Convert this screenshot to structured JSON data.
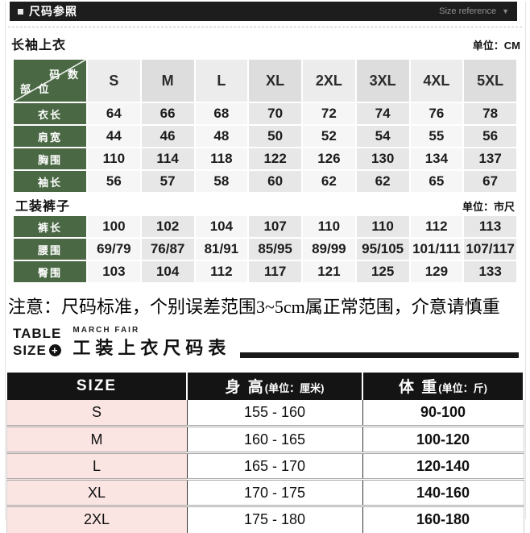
{
  "header": {
    "title": "尺码参照",
    "right_label": "Size reference",
    "arrow": "▼"
  },
  "section_top": {
    "title": "长袖上衣",
    "unit": "单位：CM"
  },
  "size_table": {
    "corner_top": "码 数",
    "corner_bottom": "部 位",
    "columns": [
      "S",
      "M",
      "L",
      "XL",
      "2XL",
      "3XL",
      "4XL",
      "5XL"
    ],
    "top_rows": [
      {
        "label": "衣长",
        "values": [
          "64",
          "66",
          "68",
          "70",
          "72",
          "74",
          "76",
          "78"
        ]
      },
      {
        "label": "肩宽",
        "values": [
          "44",
          "46",
          "48",
          "50",
          "52",
          "54",
          "55",
          "56"
        ]
      },
      {
        "label": "胸围",
        "values": [
          "110",
          "114",
          "118",
          "122",
          "126",
          "130",
          "134",
          "137"
        ]
      },
      {
        "label": "袖长",
        "values": [
          "56",
          "57",
          "58",
          "60",
          "62",
          "62",
          "65",
          "67"
        ]
      }
    ],
    "section_pants": {
      "title": "工装裤子",
      "unit": "单位：市尺"
    },
    "pants_rows": [
      {
        "label": "裤长",
        "values": [
          "100",
          "102",
          "104",
          "107",
          "110",
          "110",
          "112",
          "113"
        ]
      },
      {
        "label": "腰围",
        "values": [
          "69/79",
          "76/87",
          "81/91",
          "85/95",
          "89/99",
          "95/105",
          "101/111",
          "107/117"
        ]
      },
      {
        "label": "臀围",
        "values": [
          "103",
          "104",
          "112",
          "117",
          "121",
          "125",
          "129",
          "133"
        ]
      }
    ]
  },
  "notice": "注意：尺码标准，个别误差范围3~5cm属正常范围，介意请慎重",
  "table_size": {
    "line1": "TABLE",
    "line2": "SIZE",
    "plus": "+",
    "brand": "MARCH FAIR",
    "title": "工装上衣尺码表"
  },
  "bottom_table": {
    "headers": [
      {
        "main": "SIZE",
        "sub": ""
      },
      {
        "main": "身 高",
        "sub": "(单位：厘米)"
      },
      {
        "main": "体 重",
        "sub": "(单位：斤)"
      }
    ],
    "rows": [
      {
        "size": "S",
        "height": "155 - 160",
        "weight": "90-100"
      },
      {
        "size": "M",
        "height": "160 - 165",
        "weight": "100-120"
      },
      {
        "size": "L",
        "height": "165 - 170",
        "weight": "120-140"
      },
      {
        "size": "XL",
        "height": "170 - 175",
        "weight": "140-160"
      },
      {
        "size": "2XL",
        "height": "175 - 180",
        "weight": "160-180"
      }
    ]
  },
  "colors": {
    "green_label": "#4a6844",
    "topbar_black": "#1d1d1d",
    "pink_size_col": "#fbe5e3",
    "heading_black": "#191919"
  }
}
